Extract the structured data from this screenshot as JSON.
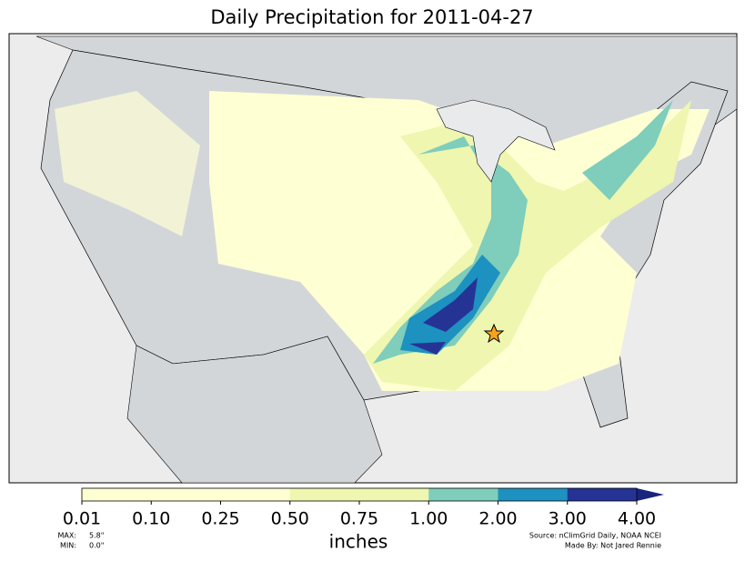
{
  "title": "Daily Precipitation for 2011-04-27",
  "colorbar": {
    "label": "inches",
    "ticks": [
      {
        "value": 0.01,
        "label": "0.01"
      },
      {
        "value": 0.1,
        "label": "0.10"
      },
      {
        "value": 0.25,
        "label": "0.25"
      },
      {
        "value": 0.5,
        "label": "0.50"
      },
      {
        "value": 0.75,
        "label": "0.75"
      },
      {
        "value": 1,
        "label": "1.00"
      },
      {
        "value": 2,
        "label": "2.00"
      },
      {
        "value": 3,
        "label": "3.00"
      },
      {
        "value": 4,
        "label": "4.00"
      }
    ],
    "colors": [
      "#ffffd4",
      "#ffffd4",
      "#ffffd4",
      "#eef6b0",
      "#eef6b0",
      "#7fcdbb",
      "#1d91c0",
      "#253494"
    ],
    "extend_color": "#1a237e"
  },
  "stats": {
    "max_label": "MAX:",
    "max": "5.8\"",
    "min_label": "MIN:",
    "min": "0.0\""
  },
  "source": "Source: nClimGrid Daily, NOAA NCEI",
  "credit": "Made By: Not Jared Rennie"
}
